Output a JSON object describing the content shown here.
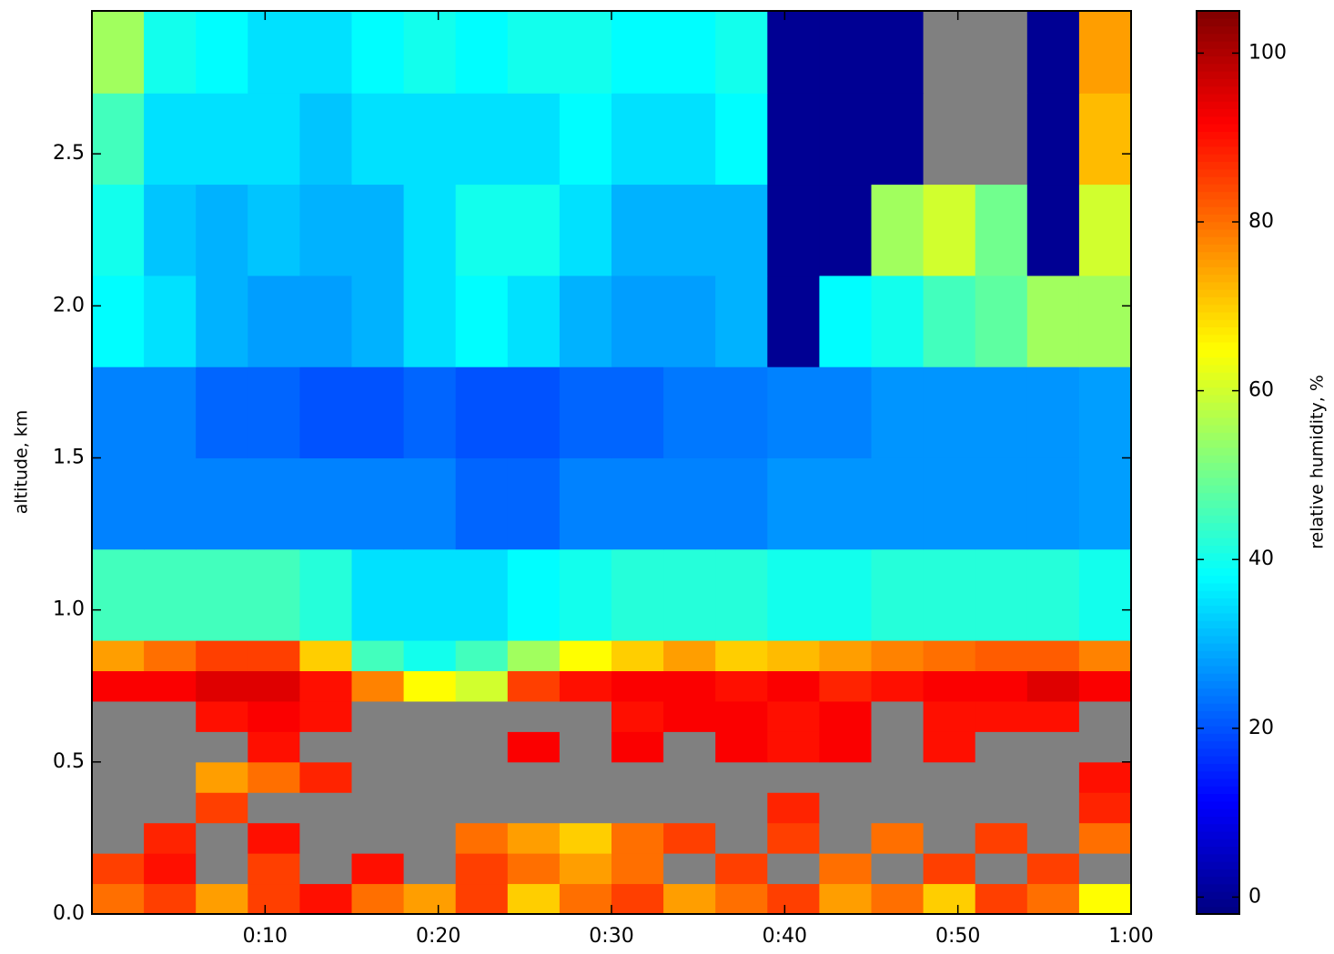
{
  "chart_data": {
    "type": "heatmap",
    "y_label": "altitude, km",
    "colorbar_label": "relative humidity, %",
    "colormap": "jet",
    "masked_color": "#808080",
    "xlim": [
      0,
      60
    ],
    "xticks": [
      {
        "value": 10,
        "label": "0:10"
      },
      {
        "value": 20,
        "label": "0:20"
      },
      {
        "value": 30,
        "label": "0:30"
      },
      {
        "value": 40,
        "label": "0:40"
      },
      {
        "value": 50,
        "label": "0:50"
      },
      {
        "value": 60,
        "label": "1:00"
      }
    ],
    "ylim": [
      0,
      2.97
    ],
    "yticks": [
      {
        "value": 0,
        "label": "0.0"
      },
      0.5,
      {
        "value": 1,
        "label": "1.0"
      },
      1.5,
      {
        "value": 2,
        "label": "2.0"
      },
      2.5
    ],
    "clim": [
      -2,
      105
    ],
    "cticks": [
      0,
      20,
      40,
      60,
      80,
      100
    ],
    "x_edges": [
      0,
      3,
      6,
      9,
      12,
      15,
      18,
      21,
      24,
      27,
      30,
      33,
      36,
      39,
      42,
      45,
      48,
      51,
      54,
      57,
      60
    ],
    "y_edges": [
      0,
      0.1,
      0.2,
      0.3,
      0.4,
      0.5,
      0.6,
      0.7,
      0.8,
      0.9,
      1.2,
      1.5,
      1.8,
      2.1,
      2.4,
      2.7,
      2.97
    ],
    "z": [
      [
        80,
        85,
        75,
        85,
        90,
        80,
        75,
        85,
        70,
        80,
        85,
        75,
        80,
        85,
        75,
        80,
        70,
        85,
        80,
        65
      ],
      [
        85,
        90,
        null,
        85,
        null,
        90,
        null,
        85,
        80,
        75,
        80,
        null,
        85,
        null,
        80,
        null,
        85,
        null,
        85,
        null
      ],
      [
        null,
        88,
        null,
        90,
        null,
        null,
        null,
        80,
        75,
        70,
        80,
        85,
        null,
        85,
        null,
        80,
        null,
        85,
        null,
        80
      ],
      [
        null,
        null,
        85,
        null,
        null,
        null,
        null,
        null,
        null,
        null,
        null,
        null,
        null,
        88,
        null,
        null,
        null,
        null,
        null,
        88
      ],
      [
        null,
        null,
        75,
        80,
        88,
        null,
        null,
        null,
        null,
        null,
        null,
        null,
        null,
        null,
        null,
        null,
        null,
        null,
        null,
        90
      ],
      [
        null,
        null,
        null,
        90,
        null,
        null,
        null,
        null,
        92,
        null,
        92,
        null,
        92,
        90,
        92,
        null,
        90,
        null,
        null,
        null
      ],
      [
        null,
        null,
        90,
        92,
        90,
        null,
        null,
        null,
        null,
        null,
        90,
        92,
        92,
        90,
        92,
        null,
        90,
        90,
        90,
        null
      ],
      [
        92,
        92,
        95,
        95,
        90,
        78,
        65,
        60,
        85,
        90,
        92,
        92,
        90,
        92,
        88,
        90,
        92,
        92,
        95,
        92
      ],
      [
        75,
        80,
        85,
        85,
        70,
        45,
        40,
        45,
        55,
        65,
        70,
        75,
        70,
        72,
        75,
        78,
        80,
        82,
        82,
        78
      ],
      [
        45,
        45,
        45,
        45,
        42,
        35,
        35,
        35,
        38,
        40,
        42,
        42,
        42,
        40,
        40,
        42,
        42,
        42,
        42,
        40
      ],
      [
        25,
        25,
        25,
        25,
        25,
        25,
        25,
        22,
        22,
        25,
        25,
        25,
        25,
        27,
        27,
        27,
        27,
        27,
        27,
        28
      ],
      [
        25,
        25,
        22,
        22,
        20,
        20,
        22,
        20,
        20,
        22,
        22,
        24,
        24,
        25,
        25,
        27,
        27,
        27,
        27,
        28
      ],
      [
        38,
        35,
        30,
        28,
        28,
        30,
        35,
        38,
        35,
        30,
        28,
        28,
        30,
        0,
        38,
        40,
        45,
        48,
        55,
        55
      ],
      [
        40,
        32,
        30,
        32,
        30,
        30,
        35,
        40,
        40,
        35,
        30,
        30,
        30,
        0,
        0,
        55,
        60,
        50,
        0,
        60
      ],
      [
        45,
        35,
        35,
        35,
        32,
        35,
        35,
        35,
        35,
        38,
        35,
        35,
        38,
        0,
        0,
        0,
        null,
        null,
        0,
        72
      ],
      [
        55,
        40,
        38,
        35,
        35,
        38,
        40,
        38,
        40,
        40,
        38,
        38,
        40,
        0,
        0,
        0,
        null,
        null,
        0,
        75
      ]
    ]
  }
}
